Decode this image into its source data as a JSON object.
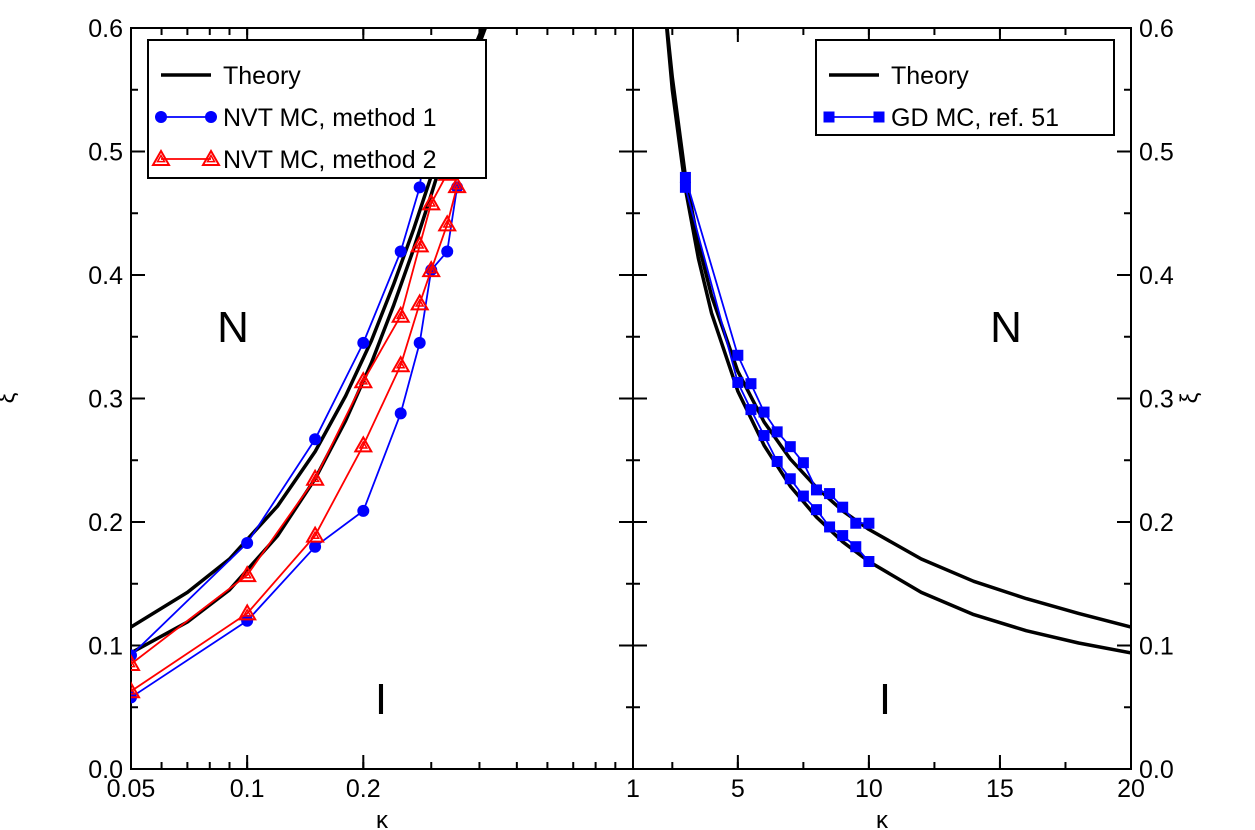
{
  "chart_data": [
    {
      "panel": "left",
      "type": "line",
      "xscale": "log",
      "xlim": [
        0.05,
        1
      ],
      "ylim": [
        0,
        0.6
      ],
      "x_ticks": [
        "0.05",
        "0.1",
        "0.2",
        "1"
      ],
      "x_tick_values": [
        0.05,
        0.1,
        0.2,
        1
      ],
      "y_ticks": [
        "0.0",
        "0.1",
        "0.2",
        "0.3",
        "0.4",
        "0.5",
        "0.6"
      ],
      "y_tick_values": [
        0.0,
        0.1,
        0.2,
        0.3,
        0.4,
        0.5,
        0.6
      ],
      "xlabel": "κ",
      "ylabel": "ξ",
      "grid": false,
      "legend_position": "top-left",
      "annotations": [
        {
          "text": "N",
          "x": 0.1,
          "y": 0.365
        },
        {
          "text": "I",
          "x": 0.1,
          "y": 0.065
        }
      ],
      "series": [
        {
          "name": "Theory",
          "color": "#000000",
          "marker": "none",
          "x": [
            0.05,
            0.07,
            0.09,
            0.12,
            0.15,
            0.18,
            0.21,
            0.24,
            0.27,
            0.3,
            0.33,
            0.36,
            0.39,
            0.42,
            0.45,
            0.48
          ],
          "y": [
            0.115,
            0.143,
            0.17,
            0.213,
            0.257,
            0.302,
            0.347,
            0.393,
            0.437,
            0.48,
            0.52,
            0.556,
            0.586,
            0.61,
            0.63,
            0.65
          ]
        },
        {
          "name": "",
          "color": "#000000",
          "marker": "none",
          "x": [
            0.05,
            0.07,
            0.09,
            0.12,
            0.15,
            0.18,
            0.21,
            0.24,
            0.27,
            0.3,
            0.33,
            0.36,
            0.39,
            0.42,
            0.45,
            0.48
          ],
          "y": [
            0.094,
            0.119,
            0.145,
            0.189,
            0.235,
            0.282,
            0.329,
            0.376,
            0.421,
            0.465,
            0.507,
            0.545,
            0.578,
            0.605,
            0.628,
            0.65
          ]
        },
        {
          "name": "NVT MC, method 1",
          "color": "#0000ff",
          "marker": "circle",
          "x": [
            0.05,
            0.1,
            0.15,
            0.2,
            0.25,
            0.28,
            0.3,
            0.33,
            0.35
          ],
          "y": [
            0.092,
            0.183,
            0.267,
            0.345,
            0.419,
            0.471,
            0.55,
            0.524,
            0.542
          ]
        },
        {
          "name": "",
          "color": "#0000ff",
          "marker": "circle",
          "x": [
            0.05,
            0.1,
            0.15,
            0.2,
            0.25,
            0.28,
            0.3,
            0.33,
            0.35
          ],
          "y": [
            0.058,
            0.12,
            0.18,
            0.209,
            0.288,
            0.345,
            0.404,
            0.419,
            0.471
          ]
        },
        {
          "name": "NVT MC, method 2",
          "color": "#ff0000",
          "marker": "triangle",
          "x": [
            0.05,
            0.1,
            0.15,
            0.2,
            0.25,
            0.28,
            0.3,
            0.33,
            0.35
          ],
          "y": [
            0.085,
            0.157,
            0.235,
            0.314,
            0.367,
            0.424,
            0.458,
            0.482,
            0.519
          ]
        },
        {
          "name": "",
          "color": "#ff0000",
          "marker": "triangle",
          "x": [
            0.05,
            0.1,
            0.15,
            0.2,
            0.25,
            0.28,
            0.3,
            0.33,
            0.35
          ],
          "y": [
            0.063,
            0.126,
            0.189,
            0.262,
            0.327,
            0.377,
            0.404,
            0.441,
            0.472
          ]
        }
      ]
    },
    {
      "panel": "right",
      "type": "line",
      "xscale": "linear",
      "xlim": [
        1,
        20
      ],
      "ylim": [
        0,
        0.6
      ],
      "x_ticks": [
        "5",
        "10",
        "15",
        "20"
      ],
      "x_tick_values": [
        5,
        10,
        15,
        20
      ],
      "y_ticks": [
        "0.0",
        "0.1",
        "0.2",
        "0.3",
        "0.4",
        "0.5",
        "0.6"
      ],
      "y_tick_values": [
        0.0,
        0.1,
        0.2,
        0.3,
        0.4,
        0.5,
        0.6
      ],
      "xlabel": "κ",
      "ylabel": "ξ",
      "grid": false,
      "legend_position": "top-right",
      "annotations": [
        {
          "text": "N",
          "x": 15,
          "y": 0.365
        },
        {
          "text": "I",
          "x": 5,
          "y": 0.065
        }
      ],
      "series": [
        {
          "name": "Theory",
          "color": "#000000",
          "marker": "none",
          "x": [
            2.2,
            2.5,
            3,
            3.5,
            4,
            5,
            6,
            7,
            8,
            9,
            10,
            12,
            14,
            16,
            18,
            20
          ],
          "y": [
            0.62,
            0.56,
            0.48,
            0.425,
            0.383,
            0.322,
            0.281,
            0.251,
            0.228,
            0.209,
            0.194,
            0.17,
            0.152,
            0.138,
            0.126,
            0.115
          ]
        },
        {
          "name": "",
          "color": "#000000",
          "marker": "none",
          "x": [
            2.2,
            2.5,
            3,
            3.5,
            4,
            5,
            6,
            7,
            8,
            9,
            10,
            12,
            14,
            16,
            18,
            20
          ],
          "y": [
            0.62,
            0.55,
            0.47,
            0.413,
            0.369,
            0.306,
            0.262,
            0.229,
            0.204,
            0.184,
            0.168,
            0.143,
            0.125,
            0.112,
            0.102,
            0.094
          ]
        },
        {
          "name": "GD MC, ref. 51",
          "color": "#0000ff",
          "marker": "square",
          "x": [
            3,
            5,
            5.5,
            6,
            6.5,
            7,
            7.5,
            8,
            8.5,
            9,
            9.5,
            10
          ],
          "y": [
            0.479,
            0.335,
            0.312,
            0.289,
            0.273,
            0.261,
            0.248,
            0.226,
            0.223,
            0.212,
            0.199,
            0.199
          ]
        },
        {
          "name": "",
          "color": "#0000ff",
          "marker": "square",
          "x": [
            3,
            5,
            5.5,
            6,
            6.5,
            7,
            7.5,
            8,
            8.5,
            9,
            9.5,
            10
          ],
          "y": [
            0.471,
            0.313,
            0.291,
            0.27,
            0.249,
            0.235,
            0.221,
            0.21,
            0.196,
            0.189,
            0.18,
            0.168
          ]
        }
      ]
    }
  ]
}
